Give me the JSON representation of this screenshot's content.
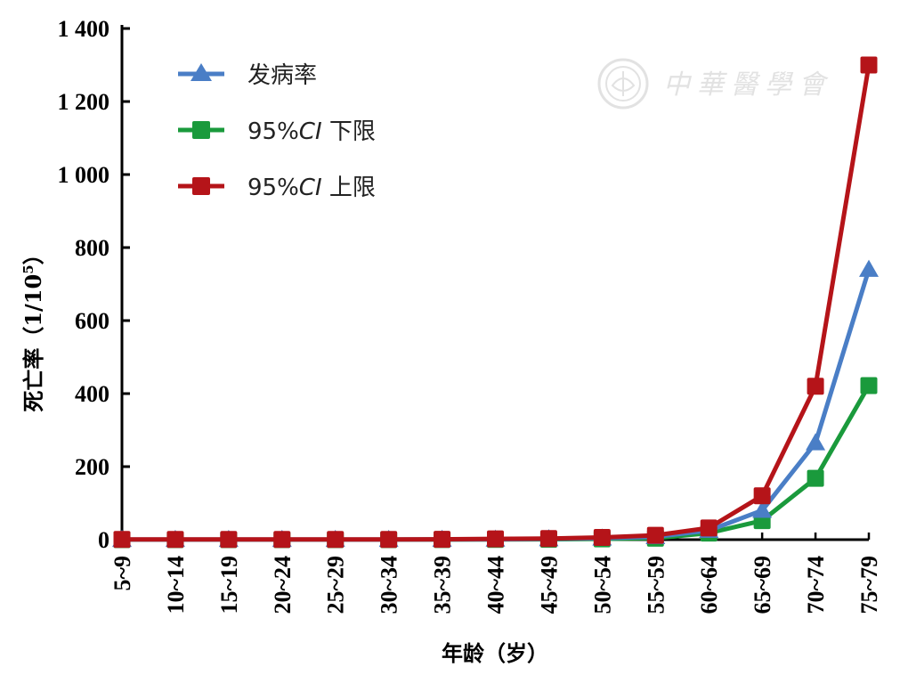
{
  "chart_data": {
    "type": "line",
    "title": "",
    "xlabel": "年龄（岁）",
    "ylabel": "死亡率（1/10",
    "ylabel_sup": "5",
    "ylabel_close": "）",
    "ylim": [
      0,
      1400
    ],
    "yticks": [
      0,
      200,
      400,
      600,
      800,
      1000,
      1200,
      1400
    ],
    "ytick_labels": [
      "0",
      "200",
      "400",
      "600",
      "800",
      "1 000",
      "1 200",
      "1 400"
    ],
    "categories": [
      "5~9",
      "10~14",
      "15~19",
      "20~24",
      "25~29",
      "30~34",
      "35~39",
      "40~44",
      "45~49",
      "50~54",
      "55~59",
      "60~64",
      "65~69",
      "70~74",
      "75~79"
    ],
    "legend_position": "top-left",
    "grid": false,
    "series": [
      {
        "name": "发病率",
        "name_prefix": "发病率",
        "name_italic": "",
        "name_suffix": "",
        "color": "#4a7ec6",
        "marker": "triangle",
        "values": [
          0.3,
          0.3,
          0.3,
          0.3,
          0.3,
          0.3,
          0.5,
          1,
          2,
          4,
          8,
          25,
          80,
          265,
          740
        ]
      },
      {
        "name": "95%CI 下限",
        "name_prefix": "95%",
        "name_italic": "CI",
        "name_suffix": " 下限",
        "color": "#1a9a3c",
        "marker": "square",
        "values": [
          0.1,
          0.1,
          0.1,
          0.1,
          0.1,
          0.1,
          0.2,
          0.5,
          1,
          2,
          4,
          18,
          52,
          168,
          422
        ]
      },
      {
        "name": "95%CI 上限",
        "name_prefix": "95%",
        "name_italic": "CI",
        "name_suffix": " 上限",
        "color": "#b51419",
        "marker": "square",
        "values": [
          0.6,
          0.6,
          0.6,
          0.6,
          0.6,
          0.6,
          1,
          2,
          3,
          6,
          12,
          32,
          120,
          420,
          1300
        ]
      }
    ]
  },
  "watermark": {
    "text": "中華醫學會",
    "icon": "chinese-medical-association-seal-icon",
    "color": "#dcdcdc"
  }
}
